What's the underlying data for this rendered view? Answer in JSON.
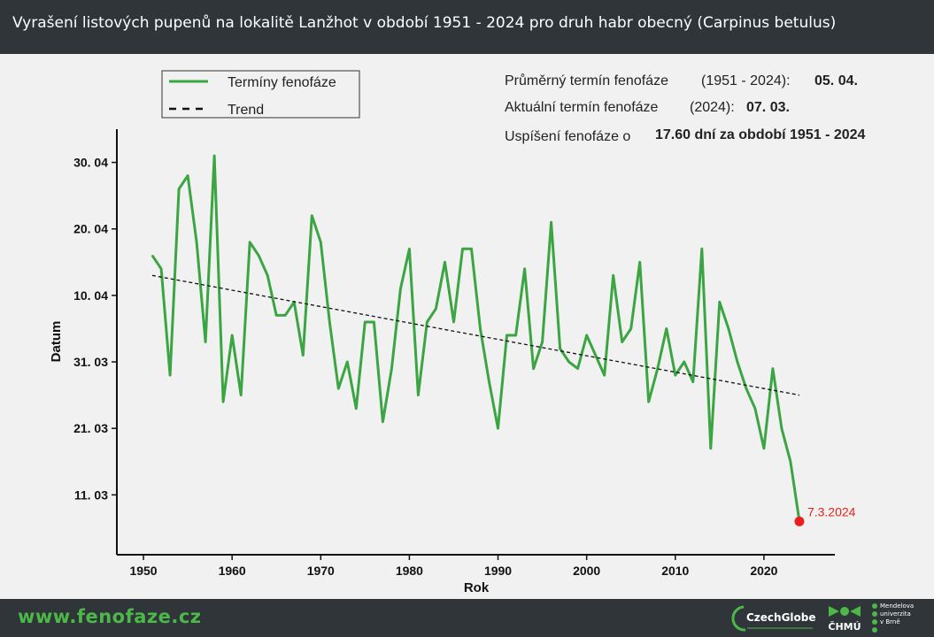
{
  "header": {
    "title": "Vyrašení listových pupenů na lokalitě Lanžhot v období 1951 - 2024 pro druh habr obecný (Carpinus betulus)"
  },
  "legend": {
    "series_label": "Termíny fenofáze",
    "trend_label": "Trend"
  },
  "stats": {
    "avg_label": "Průměrný termín fenofáze",
    "avg_period": "(1951 - 2024):",
    "avg_value": "05. 04.",
    "current_label": "Aktuální termín fenofáze",
    "current_period": "(2024):",
    "current_value": "07. 03.",
    "shift_label": "Uspíšení fenofáze o",
    "shift_value": "17.60 dní za období 1951 - 2024"
  },
  "chart_data": {
    "type": "line",
    "title": "",
    "xlabel": "Rok",
    "ylabel": "Datum",
    "xlim": [
      1947,
      2028
    ],
    "ylim": [
      "2024-03-02",
      "2024-05-05"
    ],
    "x_ticks": [
      1950,
      1960,
      1970,
      1980,
      1990,
      2000,
      2010,
      2020
    ],
    "y_ticks": [
      {
        "date": "2024-03-11",
        "label": "11. 03"
      },
      {
        "date": "2024-03-21",
        "label": "21. 03"
      },
      {
        "date": "2024-03-31",
        "label": "31. 03"
      },
      {
        "date": "2024-04-10",
        "label": "10. 04"
      },
      {
        "date": "2024-04-20",
        "label": "20. 04"
      },
      {
        "date": "2024-04-30",
        "label": "30. 04"
      }
    ],
    "series": [
      {
        "name": "Termíny fenofáze",
        "color": "#3aa542",
        "points": [
          {
            "x": 1951,
            "y": "2024-04-16"
          },
          {
            "x": 1952,
            "y": "2024-04-14"
          },
          {
            "x": 1953,
            "y": "2024-03-29"
          },
          {
            "x": 1954,
            "y": "2024-04-26"
          },
          {
            "x": 1955,
            "y": "2024-04-28"
          },
          {
            "x": 1956,
            "y": "2024-04-18"
          },
          {
            "x": 1957,
            "y": "2024-04-03"
          },
          {
            "x": 1958,
            "y": "2024-05-01"
          },
          {
            "x": 1959,
            "y": "2024-03-25"
          },
          {
            "x": 1960,
            "y": "2024-04-04"
          },
          {
            "x": 1961,
            "y": "2024-03-26"
          },
          {
            "x": 1962,
            "y": "2024-04-18"
          },
          {
            "x": 1963,
            "y": "2024-04-16"
          },
          {
            "x": 1964,
            "y": "2024-04-13"
          },
          {
            "x": 1965,
            "y": "2024-04-07"
          },
          {
            "x": 1966,
            "y": "2024-04-07"
          },
          {
            "x": 1967,
            "y": "2024-04-09"
          },
          {
            "x": 1968,
            "y": "2024-04-01"
          },
          {
            "x": 1969,
            "y": "2024-04-22"
          },
          {
            "x": 1970,
            "y": "2024-04-18"
          },
          {
            "x": 1971,
            "y": "2024-04-06"
          },
          {
            "x": 1972,
            "y": "2024-03-27"
          },
          {
            "x": 1973,
            "y": "2024-03-31"
          },
          {
            "x": 1974,
            "y": "2024-03-24"
          },
          {
            "x": 1975,
            "y": "2024-04-06"
          },
          {
            "x": 1976,
            "y": "2024-04-06"
          },
          {
            "x": 1977,
            "y": "2024-03-22"
          },
          {
            "x": 1978,
            "y": "2024-03-30"
          },
          {
            "x": 1979,
            "y": "2024-04-11"
          },
          {
            "x": 1980,
            "y": "2024-04-17"
          },
          {
            "x": 1981,
            "y": "2024-03-26"
          },
          {
            "x": 1982,
            "y": "2024-04-06"
          },
          {
            "x": 1983,
            "y": "2024-04-08"
          },
          {
            "x": 1984,
            "y": "2024-04-15"
          },
          {
            "x": 1985,
            "y": "2024-04-06"
          },
          {
            "x": 1986,
            "y": "2024-04-17"
          },
          {
            "x": 1987,
            "y": "2024-04-17"
          },
          {
            "x": 1988,
            "y": "2024-04-05"
          },
          {
            "x": 1989,
            "y": "2024-03-28"
          },
          {
            "x": 1990,
            "y": "2024-03-21"
          },
          {
            "x": 1991,
            "y": "2024-04-04"
          },
          {
            "x": 1992,
            "y": "2024-04-04"
          },
          {
            "x": 1993,
            "y": "2024-04-14"
          },
          {
            "x": 1994,
            "y": "2024-03-30"
          },
          {
            "x": 1995,
            "y": "2024-04-03"
          },
          {
            "x": 1996,
            "y": "2024-04-21"
          },
          {
            "x": 1997,
            "y": "2024-04-02"
          },
          {
            "x": 1998,
            "y": "2024-03-31"
          },
          {
            "x": 1999,
            "y": "2024-03-30"
          },
          {
            "x": 2000,
            "y": "2024-04-04"
          },
          {
            "x": 2001,
            "y": "2024-04-01"
          },
          {
            "x": 2002,
            "y": "2024-03-29"
          },
          {
            "x": 2003,
            "y": "2024-04-13"
          },
          {
            "x": 2004,
            "y": "2024-04-03"
          },
          {
            "x": 2005,
            "y": "2024-04-05"
          },
          {
            "x": 2006,
            "y": "2024-04-15"
          },
          {
            "x": 2007,
            "y": "2024-03-25"
          },
          {
            "x": 2008,
            "y": "2024-03-30"
          },
          {
            "x": 2009,
            "y": "2024-04-05"
          },
          {
            "x": 2010,
            "y": "2024-03-29"
          },
          {
            "x": 2011,
            "y": "2024-03-31"
          },
          {
            "x": 2012,
            "y": "2024-03-28"
          },
          {
            "x": 2013,
            "y": "2024-04-17"
          },
          {
            "x": 2014,
            "y": "2024-03-18"
          },
          {
            "x": 2015,
            "y": "2024-04-09"
          },
          {
            "x": 2016,
            "y": "2024-04-05"
          },
          {
            "x": 2017,
            "y": "2024-03-31"
          },
          {
            "x": 2018,
            "y": "2024-03-27"
          },
          {
            "x": 2019,
            "y": "2024-03-24"
          },
          {
            "x": 2020,
            "y": "2024-03-18"
          },
          {
            "x": 2021,
            "y": "2024-03-30"
          },
          {
            "x": 2022,
            "y": "2024-03-21"
          },
          {
            "x": 2023,
            "y": "2024-03-16"
          },
          {
            "x": 2024,
            "y": "2024-03-07"
          }
        ]
      },
      {
        "name": "Trend",
        "color": "#111111",
        "style": "dashed",
        "points": [
          {
            "x": 1951,
            "y": "2024-04-13"
          },
          {
            "x": 2024,
            "y": "2024-03-26"
          }
        ]
      }
    ],
    "annotations": [
      {
        "x": 2024,
        "y": "2024-03-07",
        "text": "7.3.2024",
        "color": "#e8211e"
      }
    ],
    "grid": false,
    "legend_position": "top-left"
  },
  "footer": {
    "site": "www.fenofaze.cz",
    "logos": [
      {
        "icon": "czechglobe-logo",
        "text": "CzechGlobe"
      },
      {
        "icon": "chmu-logo",
        "text": "ČHMÚ"
      },
      {
        "icon": "mendelu-logo",
        "lines": [
          "Mendelova",
          "univerzita",
          "v Brně"
        ]
      }
    ]
  }
}
